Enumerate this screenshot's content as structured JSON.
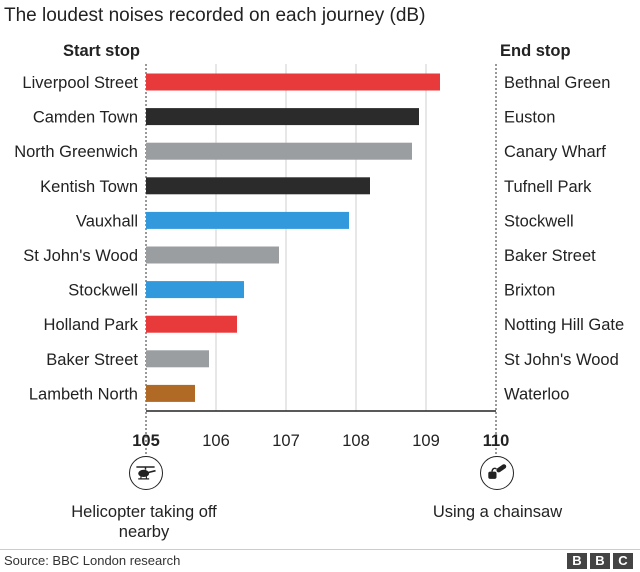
{
  "title": "The loudest noises recorded on each journey (dB)",
  "headers": {
    "start": "Start stop",
    "end": "End stop"
  },
  "notes": {
    "left": "Helicopter taking off nearby",
    "right": "Using a chainsaw"
  },
  "source": "Source: BBC London research",
  "logo": [
    "B",
    "B",
    "C"
  ],
  "icons": {
    "left": "helicopter-icon",
    "right": "chainsaw-icon"
  },
  "colors": {
    "red": "#e8393b",
    "black": "#2b2b2b",
    "grey": "#9a9ea1",
    "blue": "#3399dd",
    "brown": "#b06a26"
  },
  "chart_data": {
    "type": "bar",
    "orientation": "horizontal",
    "xlim": [
      105,
      110
    ],
    "xticks": [
      "105",
      "106",
      "107",
      "108",
      "109",
      "110"
    ],
    "grid": "vertical",
    "rows": [
      {
        "start": "Liverpool Street",
        "end": "Bethnal Green",
        "value": 109.2,
        "color": "#e8393b"
      },
      {
        "start": "Camden Town",
        "end": "Euston",
        "value": 108.9,
        "color": "#2b2b2b"
      },
      {
        "start": "North Greenwich",
        "end": "Canary Wharf",
        "value": 108.8,
        "color": "#9a9ea1"
      },
      {
        "start": "Kentish Town",
        "end": "Tufnell Park",
        "value": 108.2,
        "color": "#2b2b2b"
      },
      {
        "start": "Vauxhall",
        "end": "Stockwell",
        "value": 107.9,
        "color": "#3399dd"
      },
      {
        "start": "St John's Wood",
        "end": "Baker Street",
        "value": 106.9,
        "color": "#9a9ea1"
      },
      {
        "start": "Stockwell",
        "end": "Brixton",
        "value": 106.4,
        "color": "#3399dd"
      },
      {
        "start": "Holland Park",
        "end": "Notting Hill Gate",
        "value": 106.3,
        "color": "#e8393b"
      },
      {
        "start": "Baker Street",
        "end": "St John's Wood",
        "value": 105.9,
        "color": "#9a9ea1"
      },
      {
        "start": "Lambeth North",
        "end": "Waterloo",
        "value": 105.7,
        "color": "#b06a26"
      }
    ]
  }
}
